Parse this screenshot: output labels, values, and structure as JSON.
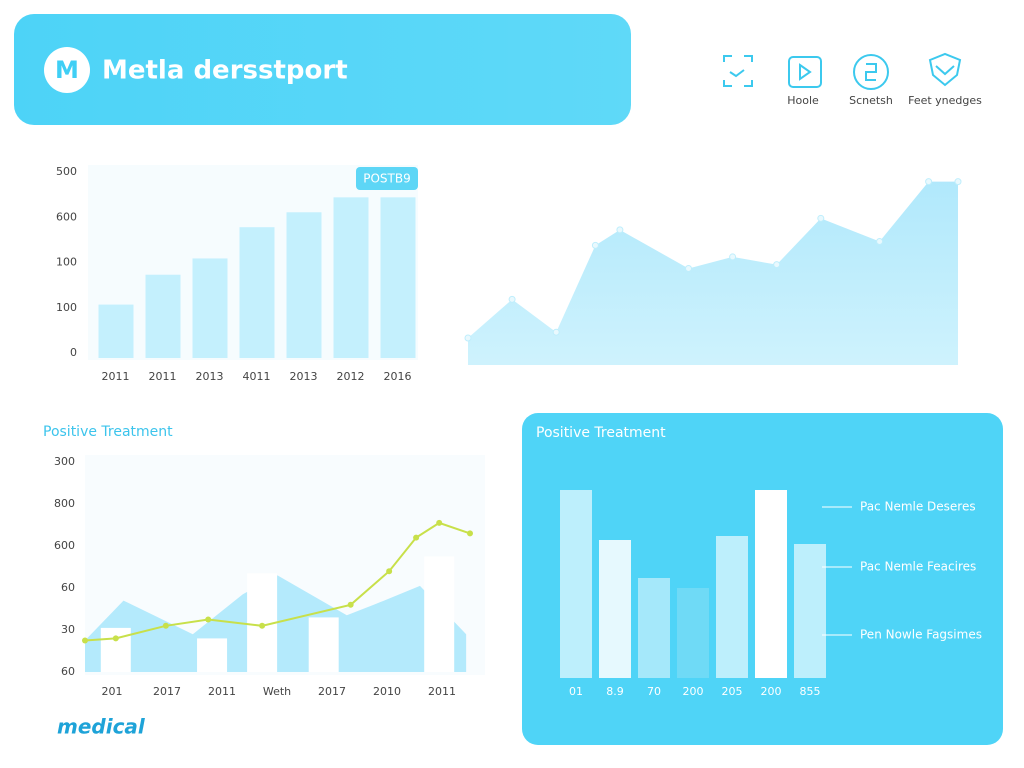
{
  "header": {
    "logo": "M",
    "title": "Metla dersstport"
  },
  "nav": [
    {
      "label": "Hoole"
    },
    {
      "label": "Scnetsh"
    },
    {
      "label": "Feet ynedges"
    }
  ],
  "footer": {
    "brand": "medical"
  },
  "chart_data": [
    {
      "type": "bar",
      "badge": "POSTB9",
      "y_labels": [
        "500",
        "600",
        "100",
        "100",
        "0"
      ],
      "categories": [
        "2011",
        "2011",
        "2013",
        "4011",
        "2013",
        "2012",
        "2016"
      ],
      "values": [
        107,
        173,
        209,
        278,
        311,
        344,
        344
      ],
      "ylim": [
        0,
        400
      ],
      "color": "#c4f0fd"
    },
    {
      "type": "area",
      "x": [
        0,
        9,
        18,
        26,
        31,
        45,
        54,
        63,
        72,
        84,
        94,
        100
      ],
      "values": [
        14,
        34,
        17,
        62,
        70,
        50,
        56,
        52,
        76,
        64,
        95,
        95
      ],
      "xlim": [
        0,
        100
      ],
      "ylim": [
        0,
        100
      ],
      "color": "#a8e6fb"
    },
    {
      "type": "combo",
      "title": "Positive Treatment",
      "y_labels": [
        "300",
        "800",
        "600",
        "60",
        "30",
        "60"
      ],
      "categories": [
        "201",
        "2017",
        "2011",
        "Weth",
        "2017",
        "2010",
        "2011"
      ],
      "xlim": [
        0,
        100
      ],
      "ylim": [
        0,
        100
      ],
      "series": [
        {
          "kind": "area",
          "color": "#a8e6fb",
          "x": [
            0,
            10,
            28,
            41,
            50,
            68,
            75,
            87,
            99
          ],
          "values": [
            15,
            34,
            18,
            37,
            46,
            27,
            32,
            41,
            18
          ]
        },
        {
          "kind": "bar",
          "color": "#ffffff",
          "x": [
            8,
            33,
            46,
            62,
            92
          ],
          "values": [
            21,
            16,
            47,
            26,
            55
          ]
        },
        {
          "kind": "line",
          "color": "#c8e04a",
          "x": [
            0,
            8,
            21,
            32,
            46,
            69,
            79,
            86,
            92,
            100
          ],
          "values": [
            15,
            16,
            22,
            25,
            22,
            32,
            48,
            64,
            71,
            66
          ]
        }
      ]
    },
    {
      "type": "bar",
      "title": "Positive Treatment",
      "categories": [
        "01",
        "8.9",
        "70",
        "200",
        "205",
        "200",
        "855"
      ],
      "values": [
        94,
        69,
        50,
        45,
        71,
        94,
        67
      ],
      "colors": [
        "#bdeffc",
        "#e6f9fe",
        "#a5e8fa",
        "#6fdaf6",
        "#bdeffc",
        "#ffffff",
        "#bdeffc"
      ],
      "ylim": [
        0,
        100
      ],
      "annotations": [
        "Pac Nemle Deseres",
        "Pac Nemle Feacires",
        "Pen Nowle Fagsimes"
      ]
    }
  ]
}
